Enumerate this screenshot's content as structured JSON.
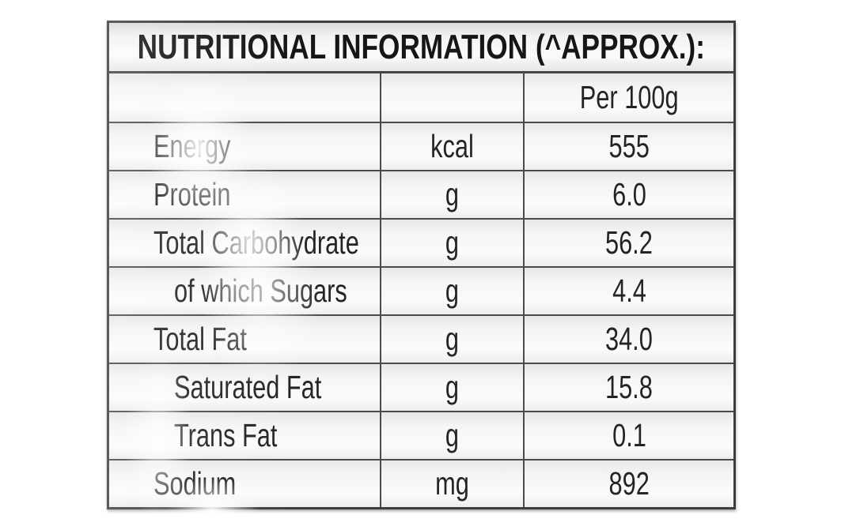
{
  "table": {
    "title": "NUTRITIONAL INFORMATION (^APPROX.):",
    "column_headers": {
      "label": "",
      "unit": "",
      "per": "Per 100g"
    },
    "rows": [
      {
        "label": "Energy",
        "unit": "kcal",
        "value": "555",
        "indent": false
      },
      {
        "label": "Protein",
        "unit": "g",
        "value": "6.0",
        "indent": false
      },
      {
        "label": "Total Carbohydrate",
        "unit": "g",
        "value": "56.2",
        "indent": false
      },
      {
        "label": "of which Sugars",
        "unit": "g",
        "value": "4.4",
        "indent": true
      },
      {
        "label": "Total Fat",
        "unit": "g",
        "value": "34.0",
        "indent": false
      },
      {
        "label": "Saturated Fat",
        "unit": "g",
        "value": "15.8",
        "indent": true
      },
      {
        "label": "Trans Fat",
        "unit": "g",
        "value": "0.1",
        "indent": true
      },
      {
        "label": "Sodium",
        "unit": "mg",
        "value": "892",
        "indent": false
      }
    ],
    "colors": {
      "text": "#242424",
      "title_text": "#161616",
      "border": "#4b4b4b",
      "outer_border": "#3e3e3e",
      "cell_bg_top": "#e7e7e7",
      "cell_bg_bottom": "#ededed",
      "page_bg": "#ffffff"
    }
  }
}
